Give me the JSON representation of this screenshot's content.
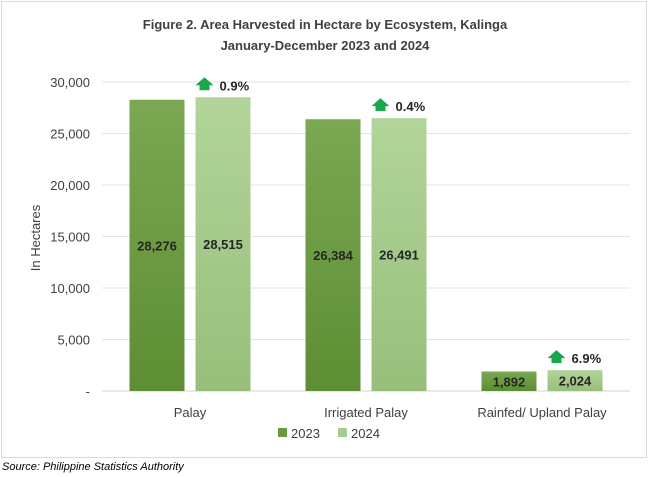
{
  "chart_data": {
    "type": "bar",
    "title": "Figure 2. Area Harvested in Hectare by Ecosystem,  Kalinga",
    "subtitle": "January-December 2023 and 2024",
    "ylabel": "In Hectares",
    "xlabel": "",
    "ylim": [
      0,
      30000
    ],
    "yticks": [
      0,
      5000,
      10000,
      15000,
      20000,
      25000,
      30000
    ],
    "ytick_labels": [
      "-",
      "5,000",
      "10,000",
      "15,000",
      "20,000",
      "25,000",
      "30,000"
    ],
    "categories": [
      "Palay",
      "Irrigated Palay",
      "Rainfed/ Upland Palay"
    ],
    "series": [
      {
        "name": "2023",
        "values": [
          28276,
          26384,
          1892
        ],
        "labels": [
          "28,276",
          "26,384",
          "1,892"
        ],
        "color": "#6a9a3f"
      },
      {
        "name": "2024",
        "values": [
          28515,
          26491,
          2024
        ],
        "labels": [
          "28,515",
          "26,491",
          "2,024"
        ],
        "color": "#a8cc8e"
      }
    ],
    "growth_annotations": [
      "0.9%",
      "0.4%",
      "6.9%"
    ],
    "growth_arrow_color": "#1aa64b",
    "grid": true,
    "legend_position": "bottom"
  },
  "source": "Source: Philippine Statistics Authority"
}
